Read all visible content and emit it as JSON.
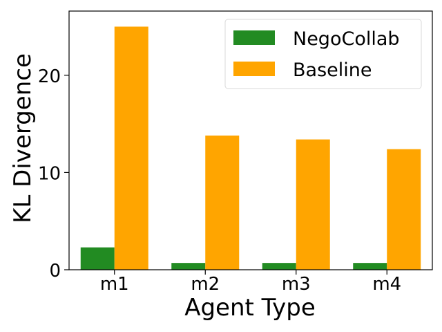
{
  "chart_data": {
    "type": "bar",
    "title": "",
    "xlabel": "Agent Type",
    "ylabel": "KL Divergence",
    "categories": [
      "m1",
      "m2",
      "m3",
      "m4"
    ],
    "series": [
      {
        "name": "NegoCollab",
        "values": [
          2.3,
          0.7,
          0.7,
          0.7
        ],
        "color": "#228b22"
      },
      {
        "name": "Baseline",
        "values": [
          25.0,
          13.8,
          13.4,
          12.4
        ],
        "color": "#ffa500"
      }
    ],
    "ylim": [
      0,
      26.6
    ],
    "yticks": [
      0,
      10,
      20
    ],
    "ytick_labels": [
      "0",
      "10",
      "20"
    ],
    "grid": false,
    "legend_position": "top-right"
  }
}
